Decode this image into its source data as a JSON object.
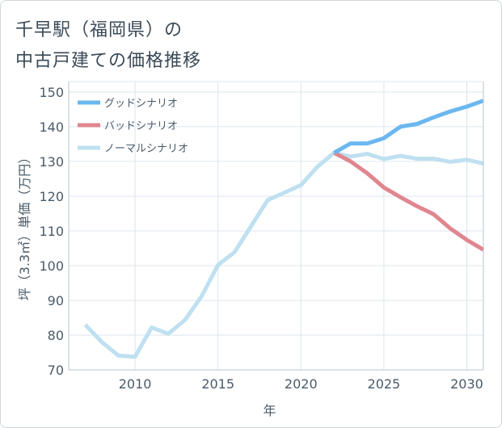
{
  "title_line1": "千早駅（福岡県）の",
  "title_line2": "中古戸建ての価格推移",
  "chart_data": {
    "type": "line",
    "title": "千早駅（福岡県）の中古戸建ての価格推移",
    "xlabel": "年",
    "ylabel": "坪（3.3㎡）単価（万円）",
    "xlim": [
      2006,
      2031
    ],
    "ylim": [
      70,
      153
    ],
    "x_ticks": [
      2010,
      2015,
      2020,
      2025,
      2030
    ],
    "y_ticks": [
      70,
      80,
      90,
      100,
      110,
      120,
      130,
      140,
      150
    ],
    "grid": true,
    "legend_position": "top-left",
    "series": [
      {
        "name": "グッドシナリオ",
        "color": "#6bb7ef",
        "x": [
          2022,
          2023,
          2024,
          2025,
          2026,
          2027,
          2028,
          2029,
          2030,
          2031
        ],
        "values": [
          132.5,
          135.2,
          135.2,
          136.7,
          140.0,
          140.8,
          142.7,
          144.4,
          145.8,
          147.5
        ]
      },
      {
        "name": "バッドシナリオ",
        "color": "#e0868f",
        "x": [
          2022,
          2023,
          2024,
          2025,
          2026,
          2027,
          2028,
          2029,
          2030,
          2031
        ],
        "values": [
          132.5,
          130.0,
          126.6,
          122.5,
          119.7,
          117.1,
          114.8,
          110.7,
          107.4,
          104.6
        ]
      },
      {
        "name": "ノーマルシナリオ",
        "color": "#bfe0f0",
        "x": [
          2007,
          2008,
          2009,
          2010,
          2011,
          2012,
          2013,
          2014,
          2015,
          2016,
          2017,
          2018,
          2019,
          2020,
          2021,
          2022,
          2023,
          2024,
          2025,
          2026,
          2027,
          2028,
          2029,
          2030,
          2031
        ],
        "values": [
          83.0,
          78.0,
          74.1,
          73.8,
          82.2,
          80.4,
          84.3,
          91.1,
          100.2,
          103.9,
          111.4,
          118.9,
          121.0,
          123.2,
          128.5,
          132.5,
          131.4,
          132.2,
          130.7,
          131.6,
          130.8,
          130.8,
          129.9,
          130.5,
          129.4
        ]
      }
    ]
  }
}
